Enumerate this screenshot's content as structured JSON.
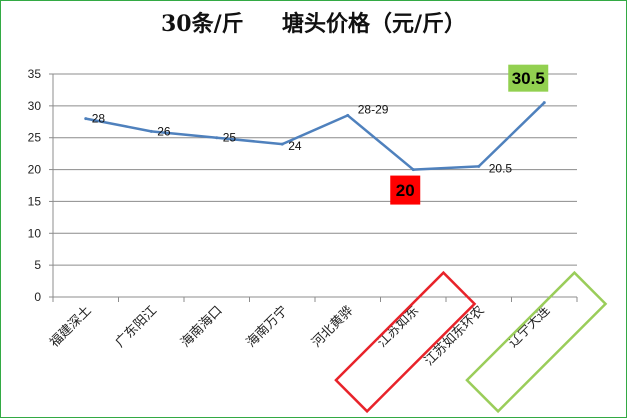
{
  "chart_data": {
    "type": "line",
    "title": "30条/斤     塘头价格（元/斤）",
    "categories": [
      "福建深土",
      "广东阳江",
      "海南海口",
      "海南万宁",
      "河北黄骅",
      "江苏如东",
      "江苏如东环农",
      "辽宁大连"
    ],
    "series": [
      {
        "values": [
          28,
          26,
          25,
          24,
          28.5,
          20,
          20.5,
          30.5
        ],
        "color": "#4f81bd"
      }
    ],
    "data_labels": [
      "28",
      "26",
      "25",
      "24",
      "28-29",
      "20",
      "20.5",
      "30.5"
    ],
    "ylim": [
      0,
      35
    ],
    "yticks": [
      0,
      5,
      10,
      15,
      20,
      25,
      30,
      35
    ],
    "grid": true,
    "xlabel": "",
    "ylabel": "",
    "highlights": [
      {
        "category": "江苏如东",
        "label": "20",
        "label_bg": "#ff0000",
        "box_color": "#e8232a"
      },
      {
        "category": "辽宁大连",
        "label": "30.5",
        "label_bg": "#92d050",
        "box_color": "#9acd5a"
      }
    ]
  }
}
